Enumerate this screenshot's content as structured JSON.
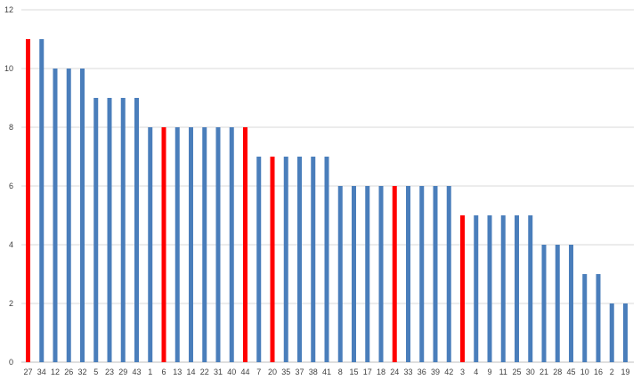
{
  "chart_data": {
    "type": "bar",
    "title": "",
    "xlabel": "",
    "ylabel": "",
    "ylim": [
      0,
      12
    ],
    "yticks": [
      0,
      2,
      4,
      6,
      8,
      10,
      12
    ],
    "grid": true,
    "legend": "none",
    "categories": [
      "27",
      "34",
      "12",
      "26",
      "32",
      "5",
      "23",
      "29",
      "43",
      "1",
      "6",
      "13",
      "14",
      "22",
      "31",
      "40",
      "44",
      "7",
      "20",
      "35",
      "37",
      "38",
      "41",
      "8",
      "15",
      "17",
      "18",
      "24",
      "33",
      "36",
      "39",
      "42",
      "3",
      "4",
      "9",
      "11",
      "25",
      "30",
      "21",
      "28",
      "45",
      "10",
      "16",
      "2",
      "19"
    ],
    "values": [
      11,
      11,
      10,
      10,
      10,
      9,
      9,
      9,
      9,
      8,
      8,
      8,
      8,
      8,
      8,
      8,
      8,
      7,
      7,
      7,
      7,
      7,
      7,
      6,
      6,
      6,
      6,
      6,
      6,
      6,
      6,
      6,
      5,
      5,
      5,
      5,
      5,
      5,
      4,
      4,
      4,
      3,
      3,
      2,
      2
    ],
    "highlighted": [
      "27",
      "6",
      "44",
      "20",
      "24",
      "3"
    ],
    "colors": {
      "default": "#4a7ebb",
      "highlight": "#ff0000",
      "grid": "#d9d9d9",
      "axis": "#bfbfbf",
      "text": "#404040"
    }
  }
}
